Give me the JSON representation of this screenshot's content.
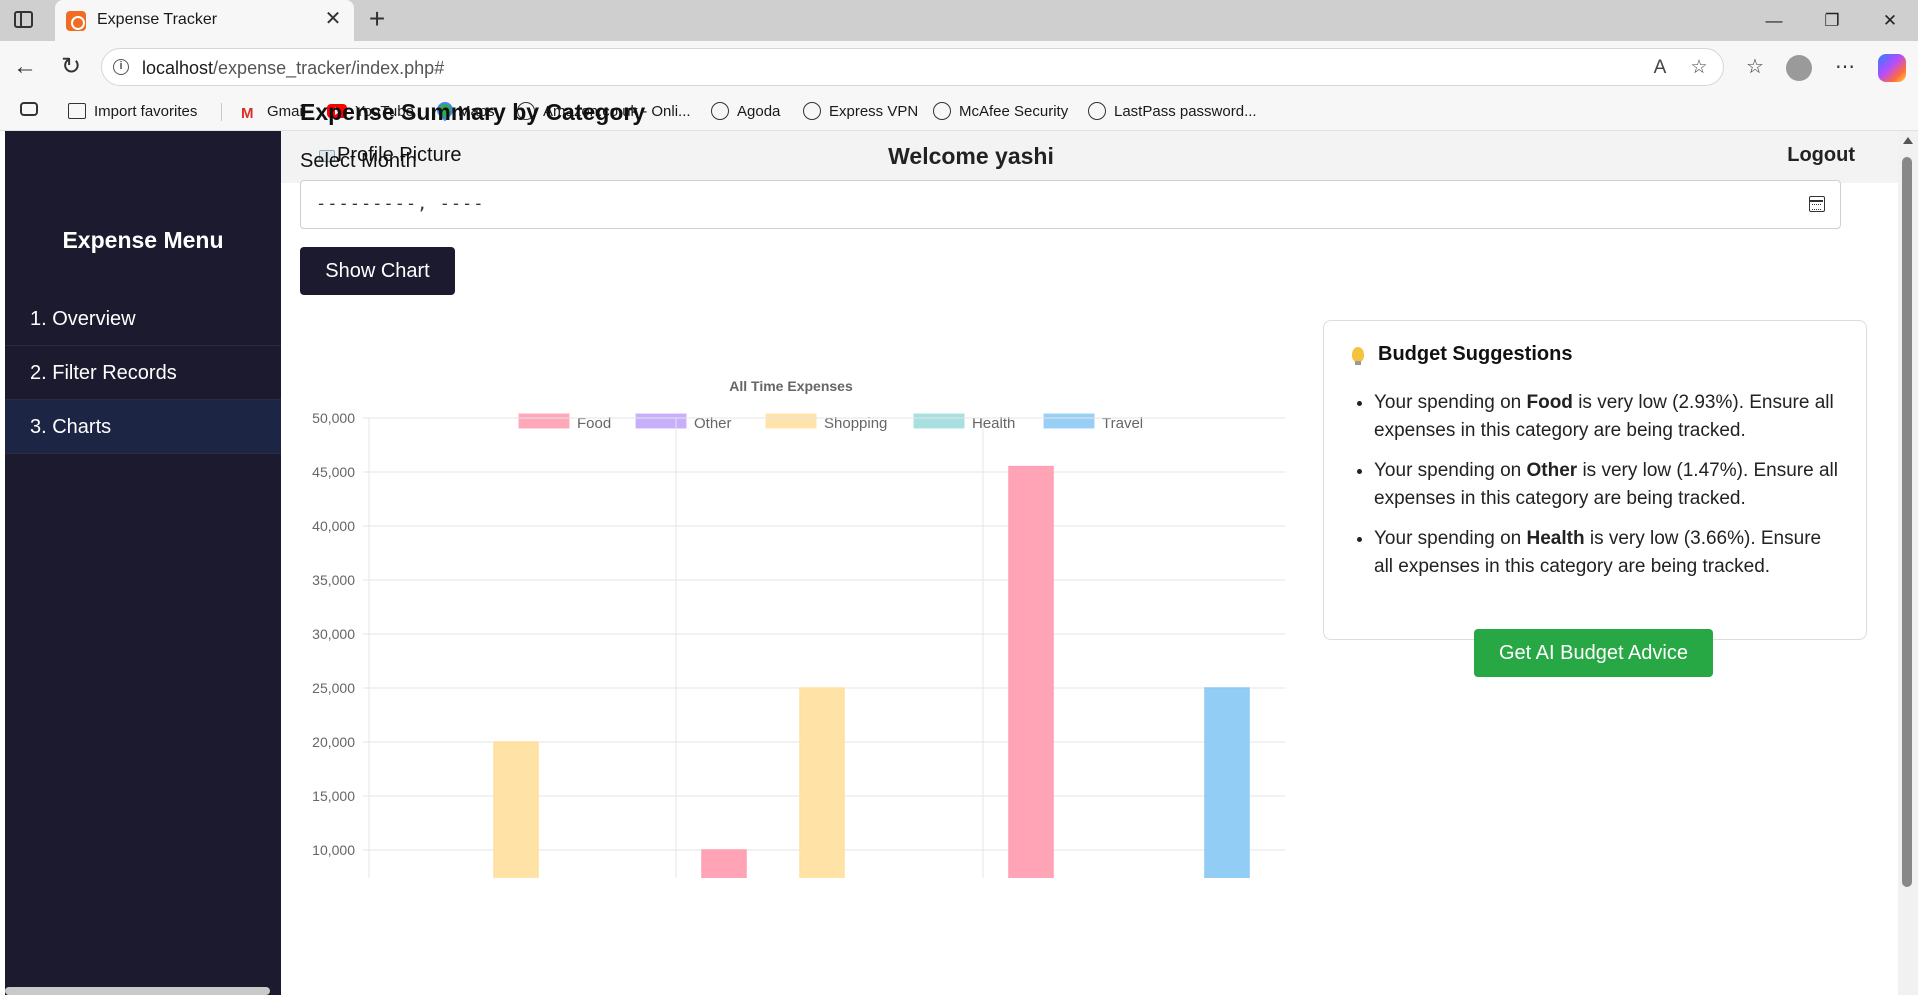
{
  "browser": {
    "tab_title": "Expense Tracker",
    "url_host": "localhost",
    "url_path": "/expense_tracker/index.php#",
    "bookmarks": [
      {
        "label": "Import favorites",
        "icon": "import-icon"
      },
      {
        "label": "Gmail",
        "icon": "gmail-icon"
      },
      {
        "label": "YouTube",
        "icon": "youtube-icon"
      },
      {
        "label": "Maps",
        "icon": "maps-icon"
      },
      {
        "label": "Amazon.co.uk - Onli...",
        "icon": "globe-icon"
      },
      {
        "label": "Agoda",
        "icon": "globe-icon"
      },
      {
        "label": "Express VPN",
        "icon": "globe-icon"
      },
      {
        "label": "McAfee Security",
        "icon": "globe-icon"
      },
      {
        "label": "LastPass password...",
        "icon": "globe-icon"
      }
    ]
  },
  "sidebar": {
    "title": "Expense Menu",
    "items": [
      {
        "label": "1. Overview"
      },
      {
        "label": "2. Filter Records"
      },
      {
        "label": "3. Charts",
        "active": true
      }
    ]
  },
  "header": {
    "profile_alt": "Profile Picture",
    "welcome": "Welcome yashi",
    "logout": "Logout"
  },
  "main": {
    "section_title": "Expense Summary by Category",
    "month_label": "Select Month",
    "month_value": "---------, ----",
    "show_chart": "Show Chart"
  },
  "chart_data": {
    "type": "bar",
    "title": "All Time Expenses",
    "legend": [
      {
        "name": "Food",
        "color": "#ff9fb3"
      },
      {
        "name": "Other",
        "color": "#c2a7fb"
      },
      {
        "name": "Shopping",
        "color": "#ffe0a0"
      },
      {
        "name": "Health",
        "color": "#9fdcdc"
      },
      {
        "name": "Travel",
        "color": "#8ccaf6"
      }
    ],
    "yticks": [
      "50,000",
      "45,000",
      "40,000",
      "35,000",
      "30,000",
      "25,000",
      "20,000",
      "15,000",
      "10,000"
    ],
    "ylim": [
      0,
      50000
    ],
    "bars": [
      {
        "series": "Shopping",
        "group": 0,
        "value": 20000
      },
      {
        "series": "Food",
        "group": 1,
        "value": 10000
      },
      {
        "series": "Shopping",
        "group": 1,
        "value": 25000
      },
      {
        "series": "Food",
        "group": 2,
        "value": 45500
      },
      {
        "series": "Travel",
        "group": 2,
        "value": 25000
      }
    ],
    "grid": true,
    "legend_placement": "top"
  },
  "budget": {
    "title": "Budget Suggestions",
    "suggestions": [
      {
        "pre": "Your spending on ",
        "cat": "Food",
        "post": " is very low (2.93%). Ensure all expenses in this category are being tracked."
      },
      {
        "pre": "Your spending on ",
        "cat": "Other",
        "post": " is very low (1.47%). Ensure all expenses in this category are being tracked."
      },
      {
        "pre": "Your spending on ",
        "cat": "Health",
        "post": " is very low (3.66%). Ensure all expenses in this category are being tracked."
      }
    ],
    "ai_button": "Get AI Budget Advice"
  }
}
